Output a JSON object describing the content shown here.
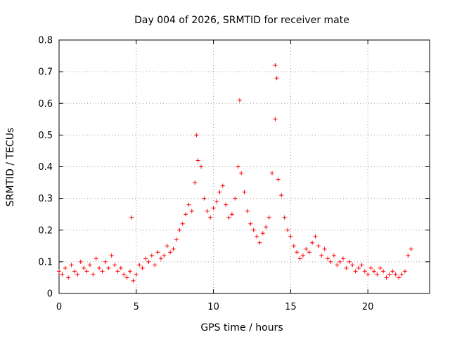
{
  "chart_data": {
    "type": "scatter",
    "title": "Day 004 of 2026, SRMTID for receiver mate",
    "xlabel": "GPS time / hours",
    "ylabel": "SRMTID / TECUs",
    "xlim": [
      0,
      24
    ],
    "ylim": [
      0,
      0.8
    ],
    "xticks": [
      0,
      5,
      10,
      15,
      20
    ],
    "yticks": [
      0,
      0.1,
      0.2,
      0.3,
      0.4,
      0.5,
      0.6,
      0.7,
      0.8
    ],
    "xtick_labels": [
      "0",
      "5",
      "10",
      "15",
      "20"
    ],
    "ytick_labels": [
      "0",
      "0.1",
      "0.2",
      "0.3",
      "0.4",
      "0.5",
      "0.6",
      "0.7",
      "0.8"
    ],
    "grid": true,
    "marker": "+",
    "color": "#ff0000",
    "series": [
      {
        "name": "SRMTID",
        "x": [
          0.0,
          0.2,
          0.4,
          0.6,
          0.8,
          1.0,
          1.2,
          1.4,
          1.6,
          1.8,
          2.0,
          2.2,
          2.4,
          2.6,
          2.8,
          3.0,
          3.2,
          3.4,
          3.6,
          3.8,
          4.0,
          4.2,
          4.4,
          4.6,
          4.8,
          5.0,
          5.2,
          5.4,
          5.6,
          5.8,
          6.0,
          6.2,
          6.4,
          6.6,
          6.8,
          7.0,
          7.2,
          7.4,
          7.6,
          7.8,
          8.0,
          8.2,
          8.4,
          8.6,
          8.8,
          9.0,
          9.2,
          9.4,
          9.6,
          9.8,
          10.0,
          10.2,
          10.4,
          10.6,
          10.8,
          11.0,
          11.2,
          11.4,
          11.6,
          11.8,
          12.0,
          12.2,
          12.4,
          12.6,
          12.8,
          13.0,
          13.2,
          13.4,
          13.6,
          13.8,
          14.0,
          14.2,
          14.4,
          14.6,
          14.8,
          15.0,
          15.2,
          15.4,
          15.6,
          15.8,
          16.0,
          16.2,
          16.4,
          16.6,
          16.8,
          17.0,
          17.2,
          17.4,
          17.6,
          17.8,
          18.0,
          18.2,
          18.4,
          18.6,
          18.8,
          19.0,
          19.2,
          19.4,
          19.6,
          19.8,
          20.0,
          20.2,
          20.4,
          20.6,
          20.8,
          21.0,
          21.2,
          21.4,
          21.6,
          21.8,
          22.0,
          22.2,
          22.4,
          22.6,
          22.8
        ],
        "y": [
          0.07,
          0.06,
          0.08,
          0.05,
          0.09,
          0.07,
          0.06,
          0.1,
          0.08,
          0.07,
          0.09,
          0.06,
          0.11,
          0.08,
          0.07,
          0.1,
          0.08,
          0.12,
          0.09,
          0.07,
          0.08,
          0.06,
          0.05,
          0.07,
          0.04,
          0.06,
          0.09,
          0.08,
          0.11,
          0.1,
          0.12,
          0.09,
          0.13,
          0.11,
          0.12,
          0.15,
          0.13,
          0.14,
          0.17,
          0.2,
          0.22,
          0.25,
          0.28,
          0.26,
          0.35,
          0.42,
          0.4,
          0.3,
          0.26,
          0.24,
          0.27,
          0.29,
          0.32,
          0.34,
          0.28,
          0.24,
          0.25,
          0.3,
          0.4,
          0.38,
          0.32,
          0.26,
          0.22,
          0.2,
          0.18,
          0.16,
          0.19,
          0.21,
          0.24,
          0.38,
          0.55,
          0.36,
          0.31,
          0.24,
          0.2,
          0.18,
          0.15,
          0.13,
          0.11,
          0.12,
          0.14,
          0.13,
          0.16,
          0.18,
          0.15,
          0.12,
          0.14,
          0.11,
          0.1,
          0.12,
          0.09,
          0.1,
          0.11,
          0.08,
          0.1,
          0.09,
          0.07,
          0.08,
          0.09,
          0.07,
          0.06,
          0.08,
          0.07,
          0.06,
          0.08,
          0.07,
          0.05,
          0.06,
          0.07,
          0.06,
          0.05,
          0.06,
          0.07,
          0.12,
          0.14
        ]
      }
    ],
    "notable_points": [
      {
        "x": 4.7,
        "y": 0.24
      },
      {
        "x": 8.9,
        "y": 0.5
      },
      {
        "x": 11.7,
        "y": 0.61
      },
      {
        "x": 14.0,
        "y": 0.72
      },
      {
        "x": 14.1,
        "y": 0.68
      }
    ]
  }
}
